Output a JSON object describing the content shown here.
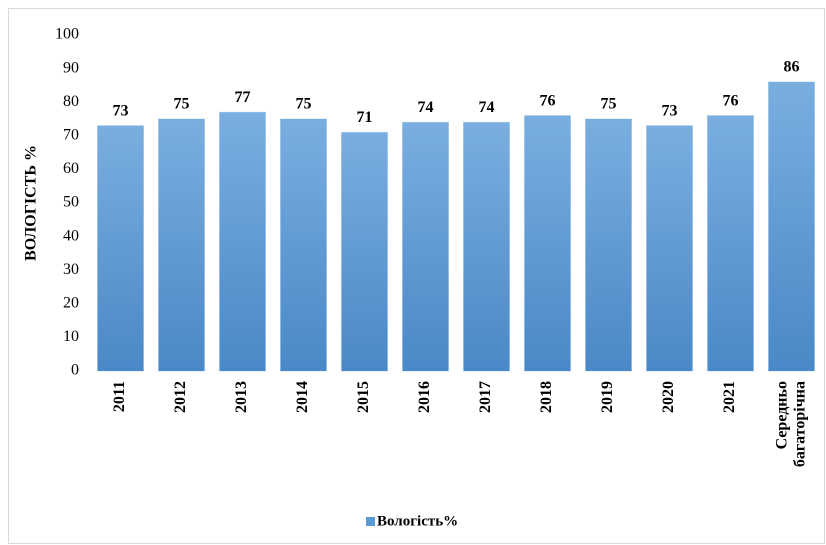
{
  "chart_data": {
    "type": "bar",
    "y_axis_label": "ВОЛОГІСТЬ %",
    "categories": [
      "2011",
      "2012",
      "2013",
      "2014",
      "2015",
      "2016",
      "2017",
      "2018",
      "2019",
      "2020",
      "2021",
      "Середньо багаторічна"
    ],
    "series": [
      {
        "name": "Вологість%",
        "color": "#5b9bd5",
        "values": [
          73,
          75,
          77,
          75,
          71,
          74,
          74,
          76,
          75,
          73,
          76,
          86
        ]
      }
    ],
    "ylim": [
      0,
      100
    ],
    "yticks": [
      0,
      10,
      20,
      30,
      40,
      50,
      60,
      70,
      80,
      90,
      100
    ],
    "grid": false,
    "legend": "bottom"
  }
}
